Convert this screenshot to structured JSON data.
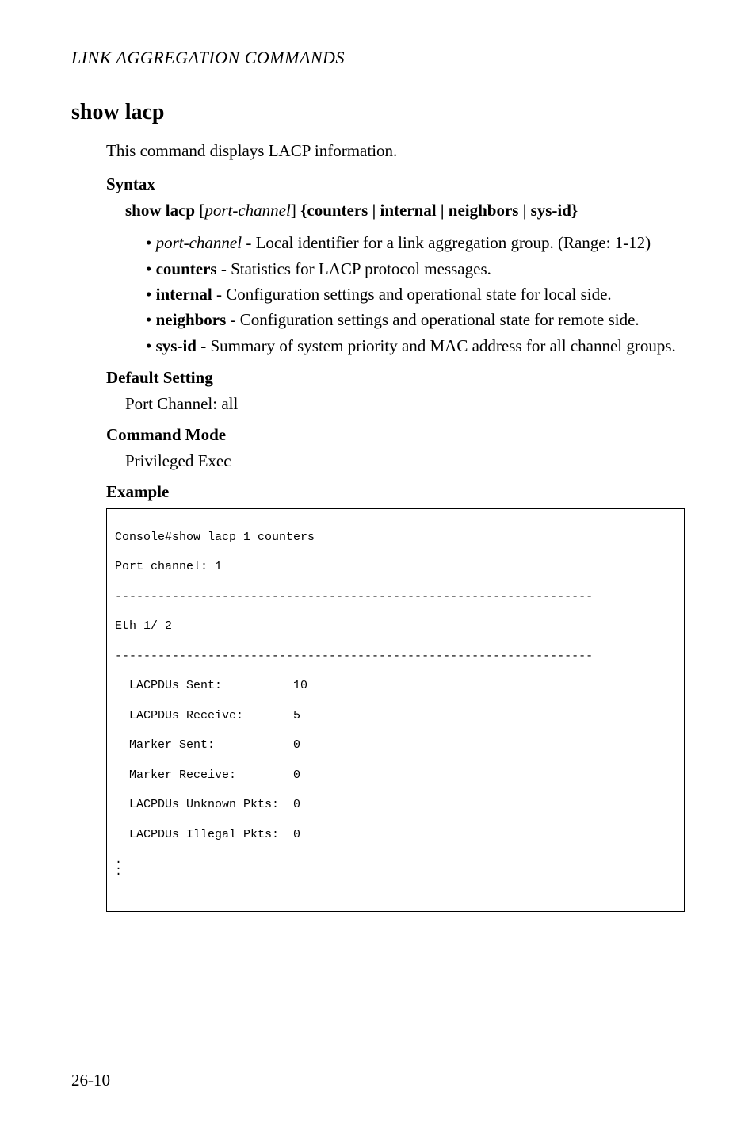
{
  "header": {
    "running": "LINK AGGREGATION COMMANDS"
  },
  "section": {
    "title": "show lacp",
    "description": "This command displays LACP information."
  },
  "syntax": {
    "label": "Syntax",
    "cmd_bold1": "show lacp",
    "cmd_italic": "port-channel",
    "cmd_rest": " {counters | internal | neighbors | sys-id}"
  },
  "params": [
    {
      "name_italic": "port-channel",
      "rest": " - Local identifier for a link aggregation group. (Range: 1-12)"
    },
    {
      "name_bold": "counters",
      "rest": " - Statistics for LACP protocol messages."
    },
    {
      "name_bold": "internal",
      "rest": " - Configuration settings and operational state for local side."
    },
    {
      "name_bold": "neighbors",
      "rest": " - Configuration settings and operational state for remote side."
    },
    {
      "name_bold": "sys-id",
      "rest": " - Summary of system priority and MAC address for all channel groups."
    }
  ],
  "default_setting": {
    "label": "Default Setting",
    "value": "Port Channel: all"
  },
  "command_mode": {
    "label": "Command Mode",
    "value": "Privileged Exec"
  },
  "example": {
    "label": "Example",
    "lines": [
      "Console#show lacp 1 counters",
      "Port channel: 1",
      "-------------------------------------------------------------------",
      "Eth 1/ 2",
      "-------------------------------------------------------------------",
      "  LACPDUs Sent:          10",
      "  LACPDUs Receive:       5",
      "  Marker Sent:           0",
      "  Marker Receive:        0",
      "  LACPDUs Unknown Pkts:  0",
      "  LACPDUs Illegal Pkts:  0"
    ]
  },
  "footer": {
    "page": "26-10"
  }
}
